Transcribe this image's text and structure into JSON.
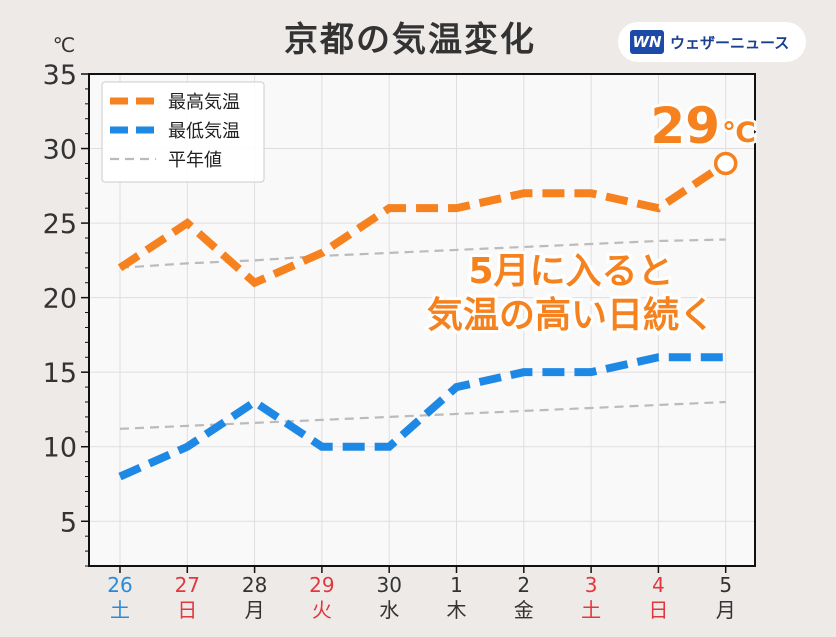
{
  "header": {
    "title": "京都の気温変化",
    "logo_mark": "WN",
    "logo_text": "ウェザーニュース"
  },
  "chart_data": {
    "type": "line",
    "ylabel": "℃",
    "ylim": [
      2,
      35
    ],
    "yticks": [
      5,
      10,
      15,
      20,
      25,
      30,
      35
    ],
    "categories": [
      {
        "day": "26",
        "weekday": "土",
        "color": "#2a8ad8"
      },
      {
        "day": "27",
        "weekday": "日",
        "color": "#e0383e"
      },
      {
        "day": "28",
        "weekday": "月",
        "color": "#333333"
      },
      {
        "day": "29",
        "weekday": "火",
        "color": "#e0383e"
      },
      {
        "day": "30",
        "weekday": "水",
        "color": "#333333"
      },
      {
        "day": "1",
        "weekday": "木",
        "color": "#333333"
      },
      {
        "day": "2",
        "weekday": "金",
        "color": "#333333"
      },
      {
        "day": "3",
        "weekday": "土",
        "color": "#e0383e"
      },
      {
        "day": "4",
        "weekday": "日",
        "color": "#e0383e"
      },
      {
        "day": "5",
        "weekday": "月",
        "color": "#333333"
      }
    ],
    "series": [
      {
        "name": "最高気温",
        "color": "#f5821f",
        "style": "dashed-thick",
        "values": [
          22,
          25,
          21,
          23,
          26,
          26,
          27,
          27,
          26,
          29
        ]
      },
      {
        "name": "最低気温",
        "color": "#1e88e5",
        "style": "dashed-thick",
        "values": [
          8,
          10,
          13,
          10,
          10,
          14,
          15,
          15,
          16,
          16
        ]
      },
      {
        "name": "平年値",
        "color": "#bbbbbb",
        "style": "dashed-thin",
        "values": [
          22.0,
          22.3,
          22.5,
          22.8,
          23.0,
          23.2,
          23.4,
          23.6,
          23.8,
          23.9
        ]
      },
      {
        "name": "平年値",
        "color": "#bbbbbb",
        "style": "dashed-thin",
        "legend": false,
        "values": [
          11.2,
          11.4,
          11.6,
          11.8,
          12.0,
          12.2,
          12.4,
          12.6,
          12.8,
          13.0
        ]
      }
    ],
    "legend_position": "top-left",
    "grid": true,
    "annotations": {
      "last_high_value": "29",
      "last_high_unit": "℃",
      "message_line1": "5月に入ると",
      "message_line2": "気温の高い日続く"
    },
    "accent_color": "#f5821f"
  }
}
